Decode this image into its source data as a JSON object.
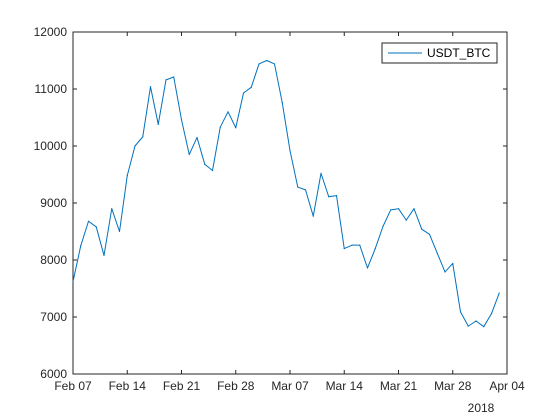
{
  "chart_data": {
    "type": "line",
    "xlabel": "",
    "ylabel": "",
    "title": "",
    "year_label": "2018",
    "x_tick_labels": [
      "Feb 07",
      "Feb 14",
      "Feb 21",
      "Feb 28",
      "Mar 07",
      "Mar 14",
      "Mar 21",
      "Mar 28",
      "Apr 04"
    ],
    "y_tick_labels": [
      "6000",
      "7000",
      "8000",
      "9000",
      "10000",
      "11000",
      "12000"
    ],
    "ylim": [
      6000,
      12000
    ],
    "xlim": [
      "2018-02-07",
      "2018-04-04"
    ],
    "grid": false,
    "legend_position": "top-right",
    "series": [
      {
        "name": "USDT_BTC",
        "color": "#0072BD",
        "points": [
          [
            "2018-02-07",
            7620
          ],
          [
            "2018-02-08",
            8250
          ],
          [
            "2018-02-09",
            8680
          ],
          [
            "2018-02-10",
            8580
          ],
          [
            "2018-02-11",
            8080
          ],
          [
            "2018-02-12",
            8900
          ],
          [
            "2018-02-13",
            8500
          ],
          [
            "2018-02-14",
            9480
          ],
          [
            "2018-02-15",
            10000
          ],
          [
            "2018-02-16",
            10160
          ],
          [
            "2018-02-17",
            11040
          ],
          [
            "2018-02-18",
            10380
          ],
          [
            "2018-02-19",
            11160
          ],
          [
            "2018-02-20",
            11210
          ],
          [
            "2018-02-21",
            10460
          ],
          [
            "2018-02-22",
            9850
          ],
          [
            "2018-02-23",
            10150
          ],
          [
            "2018-02-24",
            9680
          ],
          [
            "2018-02-25",
            9570
          ],
          [
            "2018-02-26",
            10330
          ],
          [
            "2018-02-27",
            10600
          ],
          [
            "2018-02-28",
            10320
          ],
          [
            "2018-03-01",
            10930
          ],
          [
            "2018-03-02",
            11030
          ],
          [
            "2018-03-03",
            11440
          ],
          [
            "2018-03-04",
            11500
          ],
          [
            "2018-03-05",
            11440
          ],
          [
            "2018-03-06",
            10760
          ],
          [
            "2018-03-07",
            9920
          ],
          [
            "2018-03-08",
            9280
          ],
          [
            "2018-03-09",
            9230
          ],
          [
            "2018-03-10",
            8770
          ],
          [
            "2018-03-11",
            9520
          ],
          [
            "2018-03-12",
            9110
          ],
          [
            "2018-03-13",
            9130
          ],
          [
            "2018-03-14",
            8200
          ],
          [
            "2018-03-15",
            8260
          ],
          [
            "2018-03-16",
            8260
          ],
          [
            "2018-03-17",
            7860
          ],
          [
            "2018-03-18",
            8200
          ],
          [
            "2018-03-19",
            8590
          ],
          [
            "2018-03-20",
            8880
          ],
          [
            "2018-03-21",
            8900
          ],
          [
            "2018-03-22",
            8700
          ],
          [
            "2018-03-23",
            8900
          ],
          [
            "2018-03-24",
            8540
          ],
          [
            "2018-03-25",
            8450
          ],
          [
            "2018-03-26",
            8120
          ],
          [
            "2018-03-27",
            7790
          ],
          [
            "2018-03-28",
            7940
          ],
          [
            "2018-03-29",
            7090
          ],
          [
            "2018-03-30",
            6840
          ],
          [
            "2018-03-31",
            6930
          ],
          [
            "2018-04-01",
            6830
          ],
          [
            "2018-04-02",
            7060
          ],
          [
            "2018-04-03",
            7420
          ]
        ]
      }
    ]
  }
}
